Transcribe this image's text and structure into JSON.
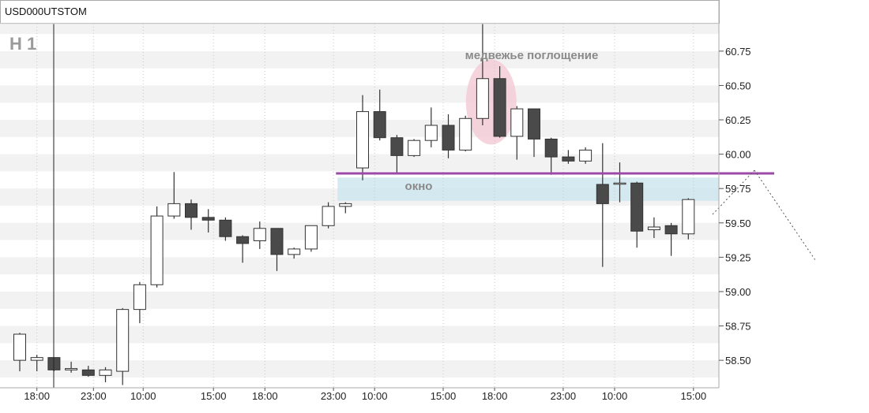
{
  "chart_data": {
    "type": "candlestick",
    "title": "USD000UTSTOM",
    "timeframe": "H 1",
    "ylim": [
      58.3,
      60.95
    ],
    "y_ticks": [
      "58.50",
      "58.75",
      "59.00",
      "59.25",
      "59.50",
      "59.75",
      "60.00",
      "60.25",
      "60.50",
      "60.75"
    ],
    "x_ticks": [
      "18:00",
      "23:00",
      "10:00",
      "15:00",
      "18:00",
      "23:00",
      "10:00",
      "15:00",
      "18:00",
      "23:00",
      "10:00",
      "15:00"
    ],
    "x_tick_index": [
      1,
      4.3,
      7.2,
      11.3,
      14.3,
      18.3,
      20.7,
      24.7,
      27.7,
      31.7,
      34.7,
      39.3
    ],
    "grid": true,
    "candles": [
      {
        "o": 58.5,
        "h": 58.7,
        "l": 58.42,
        "c": 58.69
      },
      {
        "o": 58.5,
        "h": 58.54,
        "l": 58.42,
        "c": 58.52
      },
      {
        "o": 58.52,
        "h": 58.52,
        "l": 58.42,
        "c": 58.43
      },
      {
        "o": 58.43,
        "h": 58.49,
        "l": 58.41,
        "c": 58.44
      },
      {
        "o": 58.43,
        "h": 58.46,
        "l": 58.38,
        "c": 58.39
      },
      {
        "o": 58.39,
        "h": 58.45,
        "l": 58.34,
        "c": 58.43
      },
      {
        "o": 58.42,
        "h": 58.88,
        "l": 58.32,
        "c": 58.87
      },
      {
        "o": 58.87,
        "h": 59.07,
        "l": 58.77,
        "c": 59.05
      },
      {
        "o": 59.05,
        "h": 59.62,
        "l": 59.03,
        "c": 59.55
      },
      {
        "o": 59.55,
        "h": 59.87,
        "l": 59.53,
        "c": 59.64
      },
      {
        "o": 59.64,
        "h": 59.67,
        "l": 59.45,
        "c": 59.54
      },
      {
        "o": 59.54,
        "h": 59.6,
        "l": 59.43,
        "c": 59.52
      },
      {
        "o": 59.52,
        "h": 59.54,
        "l": 59.37,
        "c": 59.4
      },
      {
        "o": 59.4,
        "h": 59.41,
        "l": 59.21,
        "c": 59.35
      },
      {
        "o": 59.37,
        "h": 59.51,
        "l": 59.31,
        "c": 59.46
      },
      {
        "o": 59.46,
        "h": 59.46,
        "l": 59.15,
        "c": 59.27
      },
      {
        "o": 59.27,
        "h": 59.32,
        "l": 59.24,
        "c": 59.31
      },
      {
        "o": 59.31,
        "h": 59.48,
        "l": 59.29,
        "c": 59.48
      },
      {
        "o": 59.48,
        "h": 59.65,
        "l": 59.46,
        "c": 59.62
      },
      {
        "o": 59.62,
        "h": 59.65,
        "l": 59.57,
        "c": 59.64
      },
      {
        "o": 59.9,
        "h": 60.43,
        "l": 59.81,
        "c": 60.31
      },
      {
        "o": 60.31,
        "h": 60.47,
        "l": 60.1,
        "c": 60.12
      },
      {
        "o": 60.12,
        "h": 60.14,
        "l": 59.86,
        "c": 59.99
      },
      {
        "o": 59.99,
        "h": 60.11,
        "l": 59.98,
        "c": 60.1
      },
      {
        "o": 60.1,
        "h": 60.34,
        "l": 60.05,
        "c": 60.21
      },
      {
        "o": 60.21,
        "h": 60.29,
        "l": 59.97,
        "c": 60.03
      },
      {
        "o": 60.03,
        "h": 60.28,
        "l": 60.02,
        "c": 60.26
      },
      {
        "o": 60.26,
        "h": 60.95,
        "l": 60.21,
        "c": 60.55
      },
      {
        "o": 60.55,
        "h": 60.64,
        "l": 60.12,
        "c": 60.13
      },
      {
        "o": 60.13,
        "h": 60.35,
        "l": 59.96,
        "c": 60.33
      },
      {
        "o": 60.33,
        "h": 60.33,
        "l": 59.98,
        "c": 60.11
      },
      {
        "o": 60.11,
        "h": 60.12,
        "l": 59.85,
        "c": 59.98
      },
      {
        "o": 59.98,
        "h": 60.03,
        "l": 59.93,
        "c": 59.95
      },
      {
        "o": 59.95,
        "h": 60.05,
        "l": 59.93,
        "c": 60.03
      },
      {
        "o": 59.78,
        "h": 60.08,
        "l": 59.18,
        "c": 59.64
      },
      {
        "o": 59.79,
        "h": 59.94,
        "l": 59.65,
        "c": 59.79
      },
      {
        "o": 59.79,
        "h": 59.8,
        "l": 59.32,
        "c": 59.44
      },
      {
        "o": 59.45,
        "h": 59.54,
        "l": 59.39,
        "c": 59.47
      },
      {
        "o": 59.48,
        "h": 59.5,
        "l": 59.26,
        "c": 59.42
      },
      {
        "o": 59.42,
        "h": 59.68,
        "l": 59.38,
        "c": 59.67
      }
    ],
    "annotations": {
      "engulfing_label": "медвежье поглощение",
      "gap_label": "окно",
      "level": 59.86,
      "gap_zone": [
        59.66,
        59.83
      ]
    },
    "colors": {
      "bear": "#4a4a4a",
      "bull": "#ffffff",
      "level_line": "#9b4aa8",
      "gap_zone": "#cfe6ef",
      "engulfing_ellipse": "#f4c9d6",
      "band": "#f2f2f2"
    }
  }
}
